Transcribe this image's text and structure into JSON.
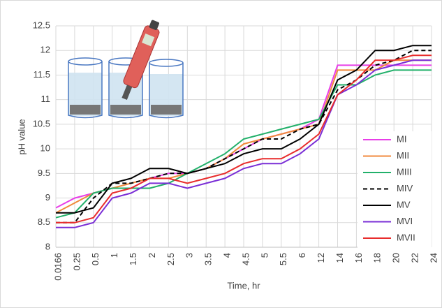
{
  "chart_data": {
    "type": "line",
    "y_label": "pH value",
    "x_label": "Time, hr",
    "categories": [
      "0.0166",
      "0.25",
      "0.5",
      "1",
      "1.5",
      "2",
      "2.5",
      "3",
      "3.5",
      "4",
      "4.5",
      "5",
      "5.5",
      "6",
      "12",
      "14",
      "16",
      "18",
      "20",
      "22",
      "24"
    ],
    "ylim": [
      8,
      12.5
    ],
    "yticks": [
      8,
      8.5,
      9,
      9.5,
      10,
      10.5,
      11,
      11.5,
      12,
      12.5
    ],
    "grid": true,
    "legend": "right",
    "series": [
      {
        "name": "MI",
        "color": "#e83ee8",
        "values": [
          8.8,
          9.0,
          9.1,
          9.2,
          9.2,
          9.4,
          9.5,
          9.5,
          9.6,
          9.8,
          10.0,
          10.2,
          10.3,
          10.4,
          10.6,
          11.7,
          11.7,
          11.7,
          11.7,
          11.7,
          11.7
        ]
      },
      {
        "name": "MII",
        "color": "#f08a3c",
        "values": [
          8.7,
          8.9,
          9.1,
          9.2,
          9.3,
          9.4,
          9.4,
          9.5,
          9.6,
          9.8,
          10.1,
          10.2,
          10.3,
          10.4,
          10.5,
          11.6,
          11.6,
          11.6,
          11.8,
          11.8,
          11.8
        ]
      },
      {
        "name": "MIII",
        "color": "#22b06a",
        "values": [
          8.6,
          8.7,
          9.1,
          9.2,
          9.2,
          9.2,
          9.3,
          9.5,
          9.7,
          9.9,
          10.2,
          10.3,
          10.4,
          10.5,
          10.6,
          11.3,
          11.3,
          11.5,
          11.6,
          11.6,
          11.6
        ]
      },
      {
        "name": "MIV",
        "color": "#000000",
        "dashed": true,
        "values": [
          8.5,
          8.5,
          9.0,
          9.3,
          9.3,
          9.4,
          9.5,
          9.5,
          9.6,
          9.8,
          10.0,
          10.2,
          10.2,
          10.4,
          10.5,
          11.2,
          11.4,
          11.7,
          11.8,
          12.0,
          12.0
        ]
      },
      {
        "name": "MV",
        "color": "#000000",
        "values": [
          8.7,
          8.7,
          8.8,
          9.3,
          9.4,
          9.6,
          9.6,
          9.5,
          9.6,
          9.7,
          9.9,
          10.0,
          10.0,
          10.2,
          10.5,
          11.4,
          11.6,
          12.0,
          12.0,
          12.1,
          12.1
        ]
      },
      {
        "name": "MVI",
        "color": "#7a2ed6",
        "values": [
          8.4,
          8.4,
          8.5,
          9.0,
          9.1,
          9.3,
          9.3,
          9.2,
          9.3,
          9.4,
          9.6,
          9.7,
          9.7,
          9.9,
          10.2,
          11.1,
          11.3,
          11.6,
          11.7,
          11.8,
          11.8
        ]
      },
      {
        "name": "MVII",
        "color": "#e82c2c",
        "values": [
          8.5,
          8.5,
          8.6,
          9.1,
          9.2,
          9.4,
          9.4,
          9.3,
          9.4,
          9.5,
          9.7,
          9.8,
          9.8,
          10.0,
          10.3,
          11.1,
          11.4,
          11.8,
          11.8,
          11.9,
          11.9
        ]
      }
    ]
  }
}
